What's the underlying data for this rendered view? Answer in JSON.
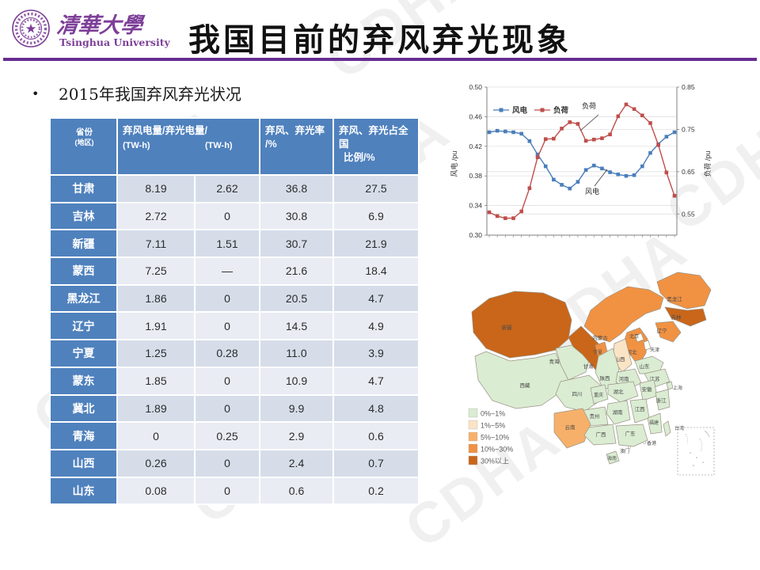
{
  "slide": {
    "logo_cn": "清華大學",
    "logo_en": "Tsinghua University",
    "title": "我国目前的弃风弃光现象",
    "bullet_marker": "•",
    "bullet": "2015年我国弃风弃光状况",
    "watermark": "CDHA",
    "accent_purple": "#662d91",
    "logo_purple": "#7d3f98"
  },
  "table": {
    "header": {
      "province_l1": "省份",
      "province_l2": "(地区)",
      "energy_l1": "弃风电量/弃光电量/",
      "energy_unit1": "(TW-h)",
      "energy_unit2": "(TW-h)",
      "rate_l1": "弃风、弃光率",
      "rate_l2": "/%",
      "share_l1": "弃风、弃光占全国",
      "share_l2": "比例/%"
    },
    "header_bg": "#4f81bd",
    "row_bg_odd": "#d6dde9",
    "row_bg_even": "#e9ecf3",
    "rows": [
      {
        "province": "甘肃",
        "wind": "8.19",
        "solar": "2.62",
        "rate": "36.8",
        "share": "27.5"
      },
      {
        "province": "吉林",
        "wind": "2.72",
        "solar": "0",
        "rate": "30.8",
        "share": "6.9"
      },
      {
        "province": "新疆",
        "wind": "7.11",
        "solar": "1.51",
        "rate": "30.7",
        "share": "21.9"
      },
      {
        "province": "蒙西",
        "wind": "7.25",
        "solar": "—",
        "rate": "21.6",
        "share": "18.4"
      },
      {
        "province": "黑龙江",
        "wind": "1.86",
        "solar": "0",
        "rate": "20.5",
        "share": "4.7"
      },
      {
        "province": "辽宁",
        "wind": "1.91",
        "solar": "0",
        "rate": "14.5",
        "share": "4.9"
      },
      {
        "province": "宁夏",
        "wind": "1.25",
        "solar": "0.28",
        "rate": "11.0",
        "share": "3.9"
      },
      {
        "province": "蒙东",
        "wind": "1.85",
        "solar": "0",
        "rate": "10.9",
        "share": "4.7"
      },
      {
        "province": "冀北",
        "wind": "1.89",
        "solar": "0",
        "rate": "9.9",
        "share": "4.8"
      },
      {
        "province": "青海",
        "wind": "0",
        "solar": "0.25",
        "rate": "2.9",
        "share": "0.6"
      },
      {
        "province": "山西",
        "wind": "0.26",
        "solar": "0",
        "rate": "2.4",
        "share": "0.7"
      },
      {
        "province": "山东",
        "wind": "0.08",
        "solar": "0",
        "rate": "0.6",
        "share": "0.2"
      }
    ]
  },
  "chart_data": {
    "type": "line",
    "x_labels": [],
    "series": [
      {
        "name": "风电",
        "axis": "left",
        "color": "#4a7ebb",
        "values": [
          0.439,
          0.441,
          0.44,
          0.439,
          0.437,
          0.427,
          0.409,
          0.393,
          0.375,
          0.368,
          0.363,
          0.372,
          0.388,
          0.394,
          0.39,
          0.385,
          0.382,
          0.38,
          0.381,
          0.393,
          0.411,
          0.423,
          0.433,
          0.439
        ]
      },
      {
        "name": "负荷",
        "axis": "right",
        "color": "#bf4e4b",
        "values": [
          0.554,
          0.545,
          0.54,
          0.54,
          0.556,
          0.611,
          0.684,
          0.727,
          0.728,
          0.752,
          0.767,
          0.763,
          0.723,
          0.726,
          0.729,
          0.738,
          0.781,
          0.809,
          0.798,
          0.783,
          0.765,
          0.713,
          0.648,
          0.593
        ]
      }
    ],
    "left_axis": {
      "label": "风电  /pu",
      "ticks": [
        0.3,
        0.34,
        0.38,
        0.42,
        0.46,
        0.5
      ],
      "range": [
        0.3,
        0.5
      ]
    },
    "right_axis": {
      "label": "负荷  /pu",
      "ticks": [
        0.55,
        0.65,
        0.75,
        0.85
      ],
      "range": [
        0.5,
        0.85
      ]
    },
    "annotations": [
      "负荷",
      "风电"
    ],
    "grid": true,
    "legend_position": "top-left-inside"
  },
  "map": {
    "legend": [
      {
        "label": "0%~1%",
        "color": "#daecd2"
      },
      {
        "label": "1%~5%",
        "color": "#fbe3c6"
      },
      {
        "label": "5%~10%",
        "color": "#f7b06a"
      },
      {
        "label": "10%~30%",
        "color": "#f19242"
      },
      {
        "label": "30%以上",
        "color": "#c9661a"
      }
    ],
    "provinces": [
      {
        "name": "新疆",
        "level": 4
      },
      {
        "name": "西藏",
        "level": 0
      },
      {
        "name": "青海",
        "level": 0
      },
      {
        "name": "甘肃",
        "level": 4
      },
      {
        "name": "内蒙古",
        "level": 3
      },
      {
        "name": "黑龙江",
        "level": 3
      },
      {
        "name": "吉林",
        "level": 4
      },
      {
        "name": "辽宁",
        "level": 3
      },
      {
        "name": "河北",
        "level": 3
      },
      {
        "name": "北京",
        "level": null
      },
      {
        "name": "天津",
        "level": null
      },
      {
        "name": "山西",
        "level": 1
      },
      {
        "name": "宁夏",
        "level": 3
      },
      {
        "name": "陕西",
        "level": 0
      },
      {
        "name": "山东",
        "level": 0
      },
      {
        "name": "河南",
        "level": 0
      },
      {
        "name": "江苏",
        "level": 0
      },
      {
        "name": "安徽",
        "level": 0
      },
      {
        "name": "上海",
        "level": 0
      },
      {
        "name": "四川",
        "level": 0
      },
      {
        "name": "重庆",
        "level": 0
      },
      {
        "name": "湖北",
        "level": 0
      },
      {
        "name": "浙江",
        "level": 0
      },
      {
        "name": "湖南",
        "level": 0
      },
      {
        "name": "江西",
        "level": 0
      },
      {
        "name": "贵州",
        "level": 0
      },
      {
        "name": "云南",
        "level": 2
      },
      {
        "name": "福建",
        "level": 0
      },
      {
        "name": "广西",
        "level": 0
      },
      {
        "name": "广东",
        "level": 0
      },
      {
        "name": "台湾",
        "level": 0
      },
      {
        "name": "海南",
        "level": 0
      },
      {
        "name": "香港",
        "level": null
      },
      {
        "name": "澳门",
        "level": null
      }
    ]
  }
}
